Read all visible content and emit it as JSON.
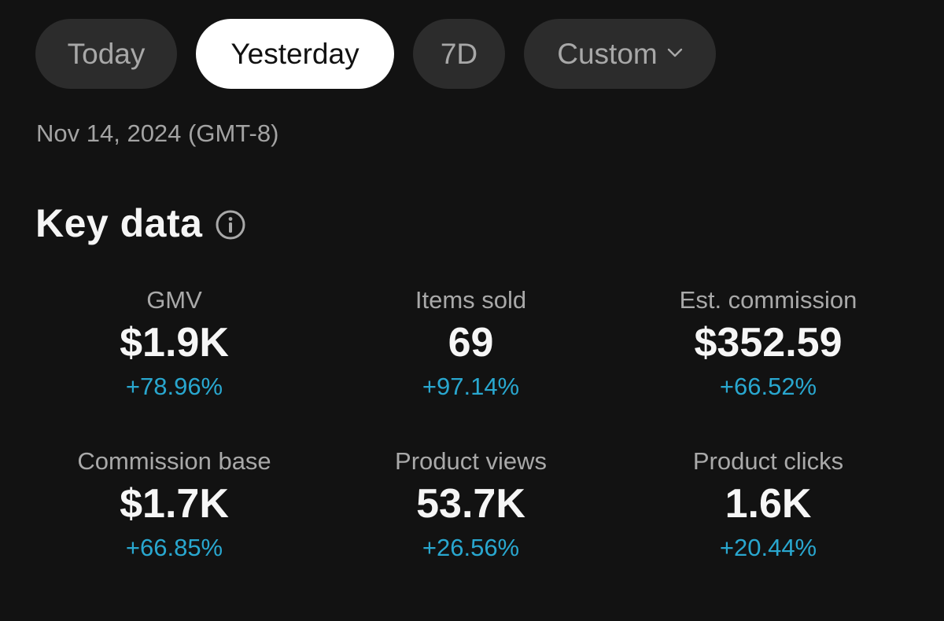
{
  "tabs": [
    {
      "label": "Today",
      "active": false
    },
    {
      "label": "Yesterday",
      "active": true
    },
    {
      "label": "7D",
      "active": false
    },
    {
      "label": "Custom",
      "active": false,
      "icon": "chevron-down-icon"
    }
  ],
  "date_range": {
    "date": "Nov 14, 2024",
    "timezone": "(GMT-8)"
  },
  "key_data": {
    "title": "Key data",
    "info_icon": "info-icon",
    "metrics": [
      {
        "label": "GMV",
        "value": "$1.9K",
        "change": "+78.96%"
      },
      {
        "label": "Items sold",
        "value": "69",
        "change": "+97.14%"
      },
      {
        "label": "Est. commission",
        "value": "$352.59",
        "change": "+66.52%"
      },
      {
        "label": "Commission base",
        "value": "$1.7K",
        "change": "+66.85%"
      },
      {
        "label": "Product views",
        "value": "53.7K",
        "change": "+26.56%"
      },
      {
        "label": "Product clicks",
        "value": "1.6K",
        "change": "+20.44%"
      }
    ]
  },
  "colors": {
    "background": "#121212",
    "tab_inactive_bg": "#2c2c2c",
    "tab_active_bg": "#ffffff",
    "positive_change": "#29a7cf"
  }
}
